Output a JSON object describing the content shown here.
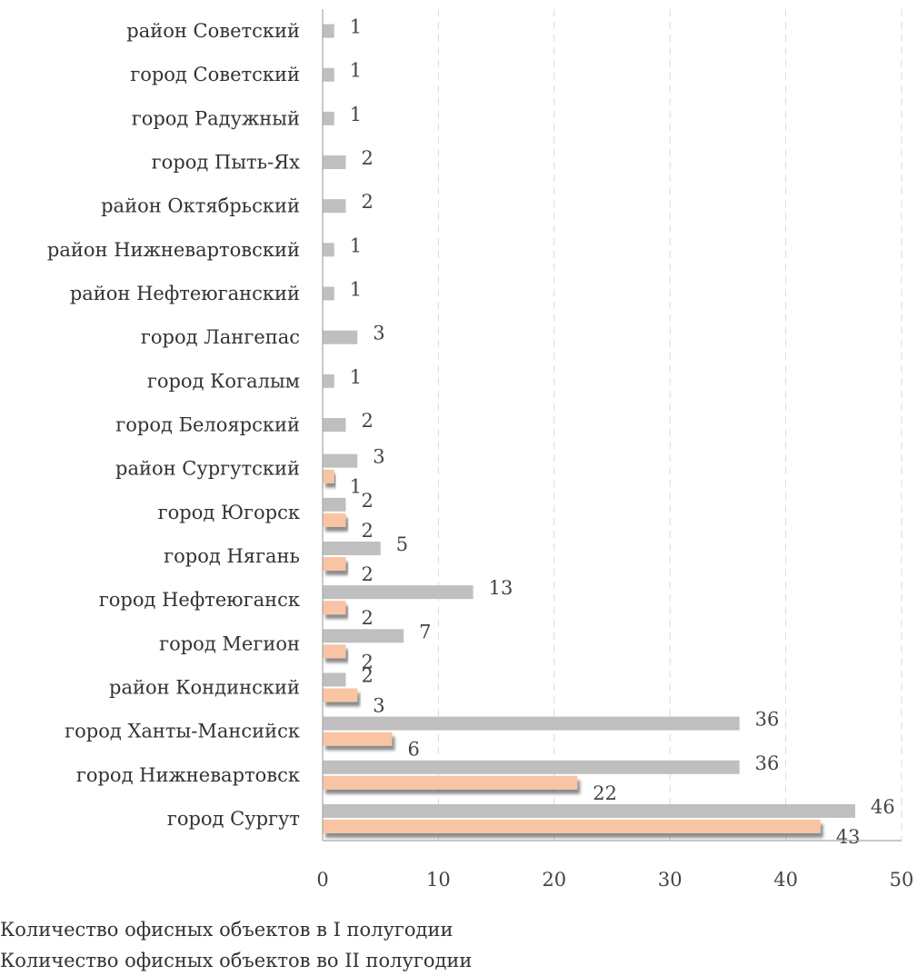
{
  "chart_data": {
    "type": "bar",
    "orientation": "horizontal",
    "categories": [
      "район Советский",
      "город Советский",
      "город Радужный",
      "город Пыть-Ях",
      "район Октябрьский",
      "район Нижневартовский",
      "район Нефтеюганский",
      "город Лангепас",
      "город Когалым",
      "город Белоярский",
      "район Сургутский",
      "город Югорск",
      "город Нягань",
      "город Нефтеюганск",
      "город Мегион",
      "район Кондинский",
      "город Ханты-Мансийск",
      "город Нижневартовск",
      "город Сургут"
    ],
    "series": [
      {
        "name": "Количество офисных объектов в I полугодии",
        "color": "#bfbfbf",
        "values": [
          1,
          1,
          1,
          2,
          2,
          1,
          1,
          3,
          1,
          2,
          3,
          2,
          5,
          13,
          7,
          2,
          36,
          36,
          46
        ]
      },
      {
        "name": "Количество офисных объектов во II полугодии",
        "color": "#f8c4a4",
        "values": [
          null,
          null,
          null,
          null,
          null,
          null,
          null,
          null,
          null,
          null,
          1,
          2,
          2,
          2,
          2,
          3,
          6,
          22,
          43
        ]
      }
    ],
    "xticks": [
      "0",
      "10",
      "20",
      "30",
      "40",
      "50"
    ],
    "xlim": [
      0,
      50
    ],
    "grid": "vertical dashed",
    "legend_position": "bottom"
  }
}
